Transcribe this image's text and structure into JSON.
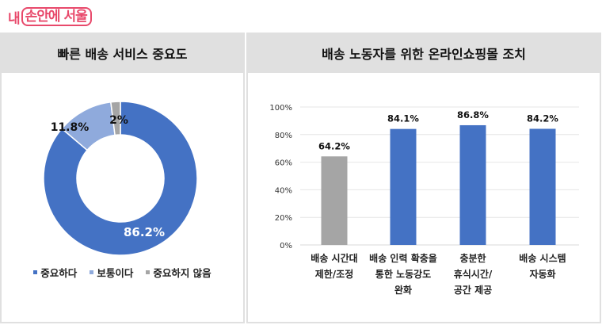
{
  "logo": {
    "prefix": "내",
    "boxed": "손안에 서울",
    "color": "#e8496b"
  },
  "left_panel": {
    "title": "빠른 배송 서비스 중요도",
    "legend": [
      {
        "label": "중요하다",
        "color": "#4472c4"
      },
      {
        "label": "보통이다",
        "color": "#8faadc"
      },
      {
        "label": "중요하지 않음",
        "color": "#a5a5a5"
      }
    ]
  },
  "right_panel": {
    "title": "배송 노동자를 위한 온라인쇼핑몰 조치",
    "x_labels": [
      "배송 시간대\n제한/조정",
      "배송 인력 확충을\n통한 노동강도\n완화",
      "충분한\n휴식시간/\n공간 제공",
      "배송 시스템\n자동화"
    ],
    "y_ticks": [
      "0%",
      "20%",
      "40%",
      "60%",
      "80%",
      "100%"
    ]
  },
  "chart_data": [
    {
      "type": "pie",
      "subtype": "donut",
      "title": "빠른 배송 서비스 중요도",
      "categories": [
        "중요하다",
        "보통이다",
        "중요하지 않음"
      ],
      "values": [
        86.2,
        11.8,
        2
      ],
      "data_labels": [
        "86.2%",
        "11.8%",
        "2%"
      ],
      "colors": [
        "#4472c4",
        "#8faadc",
        "#a5a5a5"
      ],
      "legend_position": "bottom"
    },
    {
      "type": "bar",
      "title": "배송 노동자를 위한 온라인쇼핑몰 조치",
      "categories": [
        "배송 시간대 제한/조정",
        "배송 인력 확충을 통한 노동강도 완화",
        "충분한 휴식시간/공간 제공",
        "배송 시스템 자동화"
      ],
      "values": [
        64.2,
        84.1,
        86.8,
        84.2
      ],
      "data_labels": [
        "64.2%",
        "84.1%",
        "86.8%",
        "84.2%"
      ],
      "colors": [
        "#a5a5a5",
        "#4472c4",
        "#4472c4",
        "#4472c4"
      ],
      "xlabel": "",
      "ylabel": "",
      "ylim": [
        0,
        100
      ],
      "y_ticks": [
        "0%",
        "20%",
        "40%",
        "60%",
        "80%",
        "100%"
      ],
      "grid": true,
      "legend": false
    }
  ]
}
